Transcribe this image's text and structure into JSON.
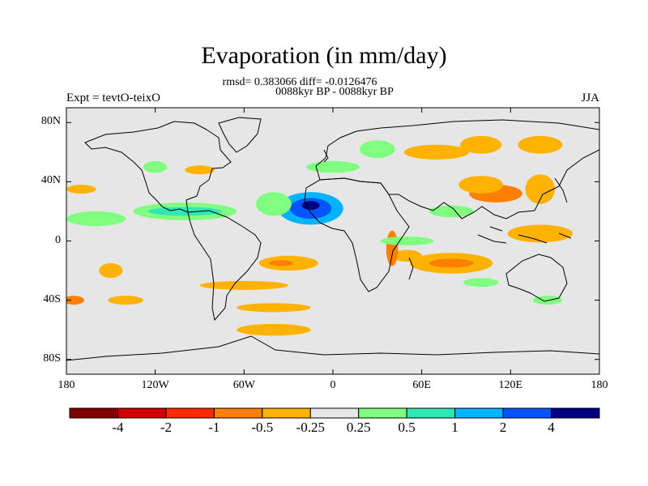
{
  "title": "Evaporation (in mm/day)",
  "stats": "rmsd= 0.383066 diff= -0.0126476",
  "subtitle": "0088kyr BP - 0088kyr BP",
  "left_label": "Expt = tevtO-teixO",
  "right_label": "JJA",
  "lat_ticks": [
    {
      "value": 80,
      "label": "80N"
    },
    {
      "value": 40,
      "label": "40N"
    },
    {
      "value": 0,
      "label": "0"
    },
    {
      "value": -40,
      "label": "40S"
    },
    {
      "value": -80,
      "label": "80S"
    }
  ],
  "lon_ticks": [
    {
      "value": -180,
      "label": "180"
    },
    {
      "value": -120,
      "label": "120W"
    },
    {
      "value": -60,
      "label": "60W"
    },
    {
      "value": 0,
      "label": "0"
    },
    {
      "value": 60,
      "label": "60E"
    },
    {
      "value": 120,
      "label": "120E"
    },
    {
      "value": 180,
      "label": "180"
    }
  ],
  "colorbar": {
    "colors": [
      "#7f0000",
      "#cc0000",
      "#ff2a00",
      "#ff7f00",
      "#ffb300",
      "#e6e6e6",
      "#80ff80",
      "#33e6b3",
      "#00b3ff",
      "#0055ff",
      "#000080"
    ],
    "levels": [
      "-4",
      "-2",
      "-1",
      "-0.5",
      "-0.25",
      "0.25",
      "0.5",
      "1",
      "2",
      "4"
    ]
  },
  "map_colors": {
    "ocean": "#e6e6e6",
    "coast": "#000000"
  },
  "anomaly_fields": [
    {
      "lon": -15,
      "lat": 22,
      "rx": 22,
      "ry": 11,
      "level": 8
    },
    {
      "lon": -15,
      "lat": 22,
      "rx": 14,
      "ry": 7,
      "level": 9
    },
    {
      "lon": -15,
      "lat": 24,
      "rx": 6,
      "ry": 3,
      "level": 10
    },
    {
      "lon": -40,
      "lat": 25,
      "rx": 12,
      "ry": 8,
      "level": 6
    },
    {
      "lon": -100,
      "lat": 20,
      "rx": 35,
      "ry": 6,
      "level": 6
    },
    {
      "lon": -100,
      "lat": 20,
      "rx": 25,
      "ry": 3,
      "level": 7
    },
    {
      "lon": -160,
      "lat": 15,
      "rx": 20,
      "ry": 5,
      "level": 6
    },
    {
      "lon": -170,
      "lat": 35,
      "rx": 10,
      "ry": 3,
      "level": 4
    },
    {
      "lon": -150,
      "lat": -20,
      "rx": 8,
      "ry": 5,
      "level": 4
    },
    {
      "lon": -30,
      "lat": -15,
      "rx": 20,
      "ry": 5,
      "level": 4
    },
    {
      "lon": -35,
      "lat": -15,
      "rx": 8,
      "ry": 2,
      "level": 3
    },
    {
      "lon": -60,
      "lat": -30,
      "rx": 30,
      "ry": 3,
      "level": 4
    },
    {
      "lon": -40,
      "lat": -45,
      "rx": 25,
      "ry": 3,
      "level": 4
    },
    {
      "lon": -40,
      "lat": -60,
      "rx": 25,
      "ry": 4,
      "level": 4
    },
    {
      "lon": -175,
      "lat": -40,
      "rx": 7,
      "ry": 3,
      "level": 3
    },
    {
      "lon": -140,
      "lat": -40,
      "rx": 12,
      "ry": 3,
      "level": 4
    },
    {
      "lon": 80,
      "lat": -15,
      "rx": 28,
      "ry": 7,
      "level": 4
    },
    {
      "lon": 80,
      "lat": -15,
      "rx": 15,
      "ry": 3,
      "level": 3
    },
    {
      "lon": 50,
      "lat": -10,
      "rx": 10,
      "ry": 4,
      "level": 4
    },
    {
      "lon": 40,
      "lat": -5,
      "rx": 4,
      "ry": 12,
      "level": 3
    },
    {
      "lon": 50,
      "lat": 0,
      "rx": 18,
      "ry": 3,
      "level": 6
    },
    {
      "lon": 100,
      "lat": -28,
      "rx": 12,
      "ry": 3,
      "level": 6
    },
    {
      "lon": 145,
      "lat": -40,
      "rx": 10,
      "ry": 3,
      "level": 6
    },
    {
      "lon": 110,
      "lat": 32,
      "rx": 18,
      "ry": 6,
      "level": 3
    },
    {
      "lon": 100,
      "lat": 38,
      "rx": 15,
      "ry": 6,
      "level": 4
    },
    {
      "lon": 140,
      "lat": 35,
      "rx": 10,
      "ry": 10,
      "level": 4
    },
    {
      "lon": 140,
      "lat": 5,
      "rx": 22,
      "ry": 6,
      "level": 4
    },
    {
      "lon": 70,
      "lat": 60,
      "rx": 22,
      "ry": 5,
      "level": 4
    },
    {
      "lon": 100,
      "lat": 65,
      "rx": 14,
      "ry": 6,
      "level": 4
    },
    {
      "lon": 140,
      "lat": 65,
      "rx": 15,
      "ry": 6,
      "level": 4
    },
    {
      "lon": 30,
      "lat": 62,
      "rx": 12,
      "ry": 6,
      "level": 6
    },
    {
      "lon": 0,
      "lat": 50,
      "rx": 18,
      "ry": 4,
      "level": 6
    },
    {
      "lon": -90,
      "lat": 48,
      "rx": 10,
      "ry": 3,
      "level": 4
    },
    {
      "lon": -120,
      "lat": 50,
      "rx": 8,
      "ry": 4,
      "level": 6
    },
    {
      "lon": 80,
      "lat": 20,
      "rx": 15,
      "ry": 4,
      "level": 6
    }
  ]
}
